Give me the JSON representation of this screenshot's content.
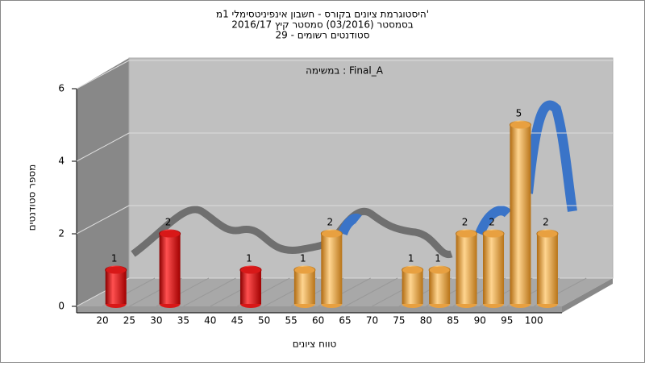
{
  "chart_data": {
    "type": "bar",
    "title": "היסטוגרמת ציונים בקורס - חשבון אינפיניטסימלי 1מ'",
    "subtitle": "בסמסטר  (03/2016)  סמסטר קיץ 2016/17",
    "subtitle2": "סטודנטים רשומים - 29",
    "annotation": "במשימה : Final_A",
    "x_label": "טווח ציונים",
    "y_label": "מספר סטודנטים",
    "categories": [
      "20",
      "25",
      "30",
      "35",
      "40",
      "45",
      "50",
      "55",
      "60",
      "65",
      "70",
      "75",
      "80",
      "85",
      "90",
      "95",
      "100"
    ],
    "values": [
      1,
      0,
      2,
      0,
      0,
      1,
      0,
      1,
      2,
      0,
      0,
      1,
      1,
      2,
      2,
      5,
      2
    ],
    "colors": [
      "#d81818",
      "#d81818",
      "#d81818",
      "#d81818",
      "#d81818",
      "#d81818",
      "#d81818",
      "#e8a040",
      "#e8a040",
      "#e8a040",
      "#e8a040",
      "#e8a040",
      "#e8a040",
      "#e8a040",
      "#e8a040",
      "#e8a040",
      "#e8a040"
    ],
    "ylim": [
      0,
      6
    ],
    "yticks": [
      0,
      2,
      4,
      6
    ],
    "grid": true
  }
}
